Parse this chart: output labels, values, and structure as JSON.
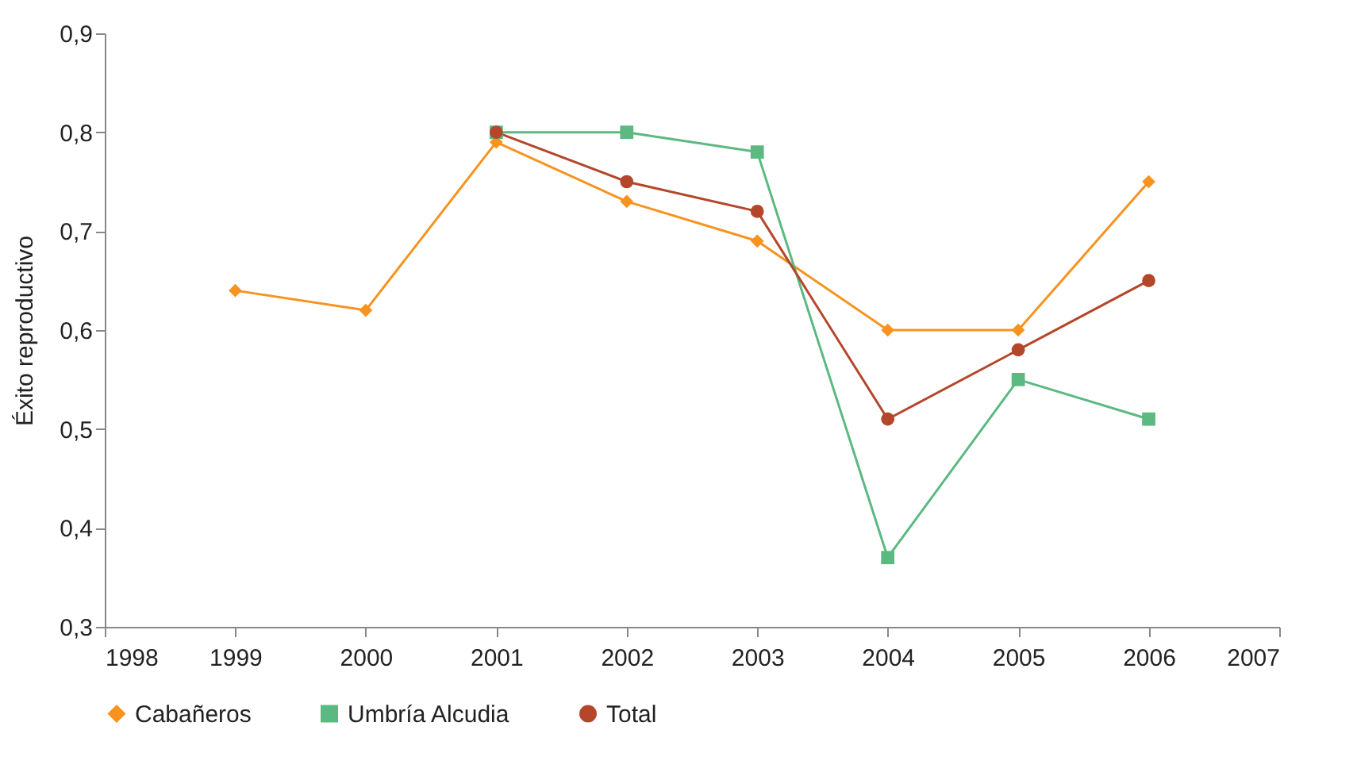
{
  "chart_data": {
    "type": "line",
    "ylabel": "Éxito reproductivo",
    "xlim": [
      1998,
      2007
    ],
    "xticks": [
      1998,
      1999,
      2000,
      2001,
      2002,
      2003,
      2004,
      2005,
      2006,
      2007
    ],
    "ylim": [
      0.3,
      0.9
    ],
    "yticks": [
      {
        "value": 0.3,
        "label": "0,3"
      },
      {
        "value": 0.4,
        "label": "0,4"
      },
      {
        "value": 0.5,
        "label": "0,5"
      },
      {
        "value": 0.6,
        "label": "0,6"
      },
      {
        "value": 0.7,
        "label": "0,7"
      },
      {
        "value": 0.8,
        "label": "0,8"
      },
      {
        "value": 0.9,
        "label": "0,9"
      }
    ],
    "grid": false,
    "legend": "bottom",
    "line_style": "solid",
    "series": [
      {
        "name": "Cabañeros",
        "color": "#f7931e",
        "marker": "diamond",
        "x": [
          1999,
          2000,
          2001,
          2002,
          2003,
          2004,
          2005,
          2006
        ],
        "values": [
          0.64,
          0.62,
          0.79,
          0.73,
          0.69,
          0.6,
          0.6,
          0.75
        ]
      },
      {
        "name": "Umbría Alcudia",
        "color": "#5cb981",
        "marker": "square",
        "x": [
          2001,
          2002,
          2003,
          2004,
          2005,
          2006
        ],
        "values": [
          0.8,
          0.8,
          0.78,
          0.37,
          0.55,
          0.51
        ]
      },
      {
        "name": "Total",
        "color": "#b4472b",
        "marker": "circle",
        "x": [
          2001,
          2002,
          2003,
          2004,
          2005,
          2006
        ],
        "values": [
          0.8,
          0.75,
          0.72,
          0.51,
          0.58,
          0.65
        ]
      }
    ]
  }
}
